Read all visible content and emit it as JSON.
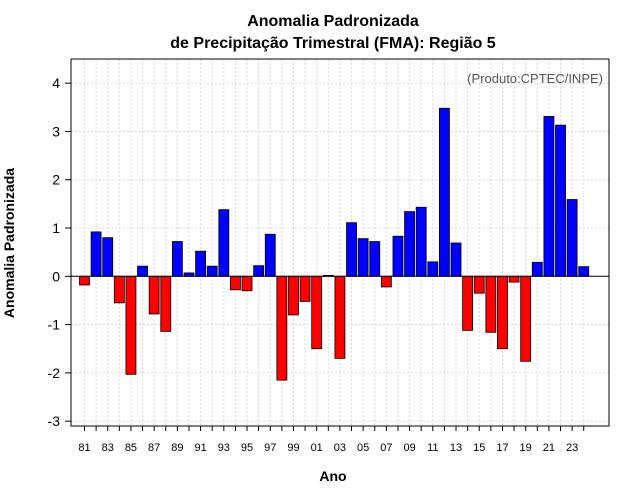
{
  "chart_data": {
    "type": "bar",
    "title_line1": "Anomalia Padronizada",
    "title_line2": "de Precipitação Trimestral (FMA): Região 5",
    "xlabel": "Ano",
    "ylabel": "Anomalia Padronizada",
    "source": "(Produto:CPTEC/INPE)",
    "ylim": [
      -3.1,
      4.5
    ],
    "yticks": [
      -3,
      -2,
      -1,
      0,
      1,
      2,
      3,
      4
    ],
    "ytick_labels": [
      "-3",
      "-2",
      "-1",
      "0",
      "1",
      "2",
      "3",
      "4"
    ],
    "categories": [
      "1981",
      "1982",
      "1983",
      "1984",
      "1985",
      "1986",
      "1987",
      "1988",
      "1989",
      "1990",
      "1991",
      "1992",
      "1993",
      "1994",
      "1995",
      "1996",
      "1997",
      "1998",
      "1999",
      "2000",
      "2001",
      "2002",
      "2003",
      "2004",
      "2005",
      "2006",
      "2007",
      "2008",
      "2009",
      "2010",
      "2011",
      "2012",
      "2013",
      "2014",
      "2015",
      "2016",
      "2017",
      "2018",
      "2019",
      "2020",
      "2021",
      "2022",
      "2023",
      "2024"
    ],
    "xtick_labels": [
      "81",
      "83",
      "85",
      "87",
      "89",
      "91",
      "93",
      "95",
      "97",
      "99",
      "01",
      "03",
      "05",
      "07",
      "09",
      "11",
      "13",
      "15",
      "17",
      "19",
      "21",
      "23"
    ],
    "values": [
      -0.18,
      0.92,
      0.8,
      -0.55,
      -2.03,
      0.21,
      -0.78,
      -1.14,
      0.72,
      0.07,
      0.52,
      0.21,
      1.38,
      -0.28,
      -0.3,
      0.22,
      0.87,
      -2.15,
      -0.8,
      -0.52,
      -1.5,
      0.02,
      -1.7,
      1.11,
      0.78,
      0.72,
      -0.22,
      0.83,
      1.34,
      1.43,
      0.3,
      3.48,
      0.69,
      -1.12,
      -0.35,
      -1.16,
      -1.5,
      -0.12,
      -1.76,
      0.29,
      3.31,
      3.13,
      1.59,
      0.2
    ],
    "positive_color": "#0000ff",
    "negative_color": "#ff0000"
  }
}
